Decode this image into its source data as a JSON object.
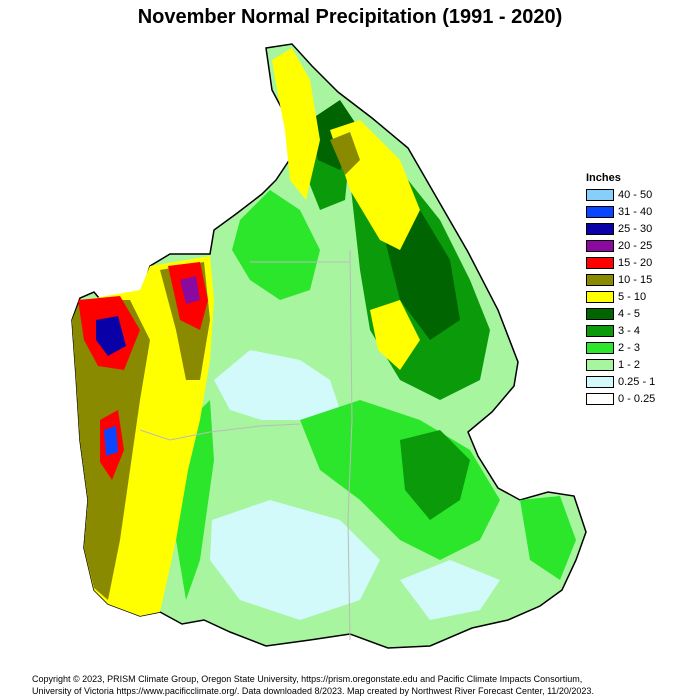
{
  "title": "November Normal Precipitation (1991 - 2020)",
  "legend": {
    "title": "Inches",
    "items": [
      {
        "label": "40 - 50",
        "color": "#87cefa"
      },
      {
        "label": "31 - 40",
        "color": "#0a46ff"
      },
      {
        "label": "25 - 30",
        "color": "#0a00a8"
      },
      {
        "label": "20 - 25",
        "color": "#8a0aa0"
      },
      {
        "label": "15 - 20",
        "color": "#ff0000"
      },
      {
        "label": "10 - 15",
        "color": "#8a8a00"
      },
      {
        "label": "5 - 10",
        "color": "#ffff00"
      },
      {
        "label": "4 - 5",
        "color": "#006400"
      },
      {
        "label": "3 - 4",
        "color": "#0a9a0a"
      },
      {
        "label": "2 - 3",
        "color": "#2ce62c"
      },
      {
        "label": "1 - 2",
        "color": "#a8f5a0"
      },
      {
        "label": "0.25 - 1",
        "color": "#d2fafa"
      },
      {
        "label": "0 - 0.25",
        "color": "#ffffff"
      }
    ]
  },
  "copyright": {
    "line1": "Copyright © 2023, PRISM Climate Group, Oregon State University, https://prism.oregonstate.edu and Pacific Climate Impacts Consortium,",
    "line2": "University of Victoria https://www.pacificclimate.org/.  Data downloaded 8/2023. Map created by Northwest River Forecast Center, 11/20/2023."
  }
}
